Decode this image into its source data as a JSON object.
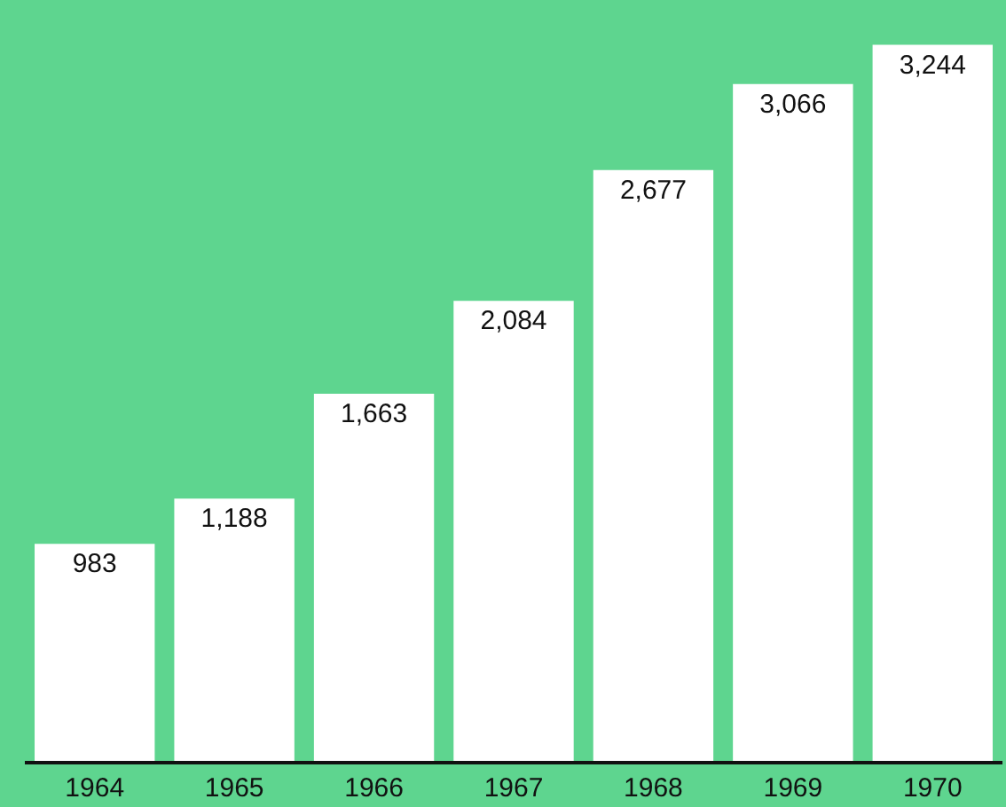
{
  "chart_data": {
    "type": "bar",
    "categories": [
      "1964",
      "1965",
      "1966",
      "1967",
      "1968",
      "1969",
      "1970"
    ],
    "values": [
      983,
      1188,
      1663,
      2084,
      2677,
      3066,
      3244
    ],
    "value_labels": [
      "983",
      "1,188",
      "1,663",
      "2,084",
      "2,677",
      "3,066",
      "3,244"
    ],
    "color": "#ffffff",
    "grid": false,
    "legend": false
  }
}
